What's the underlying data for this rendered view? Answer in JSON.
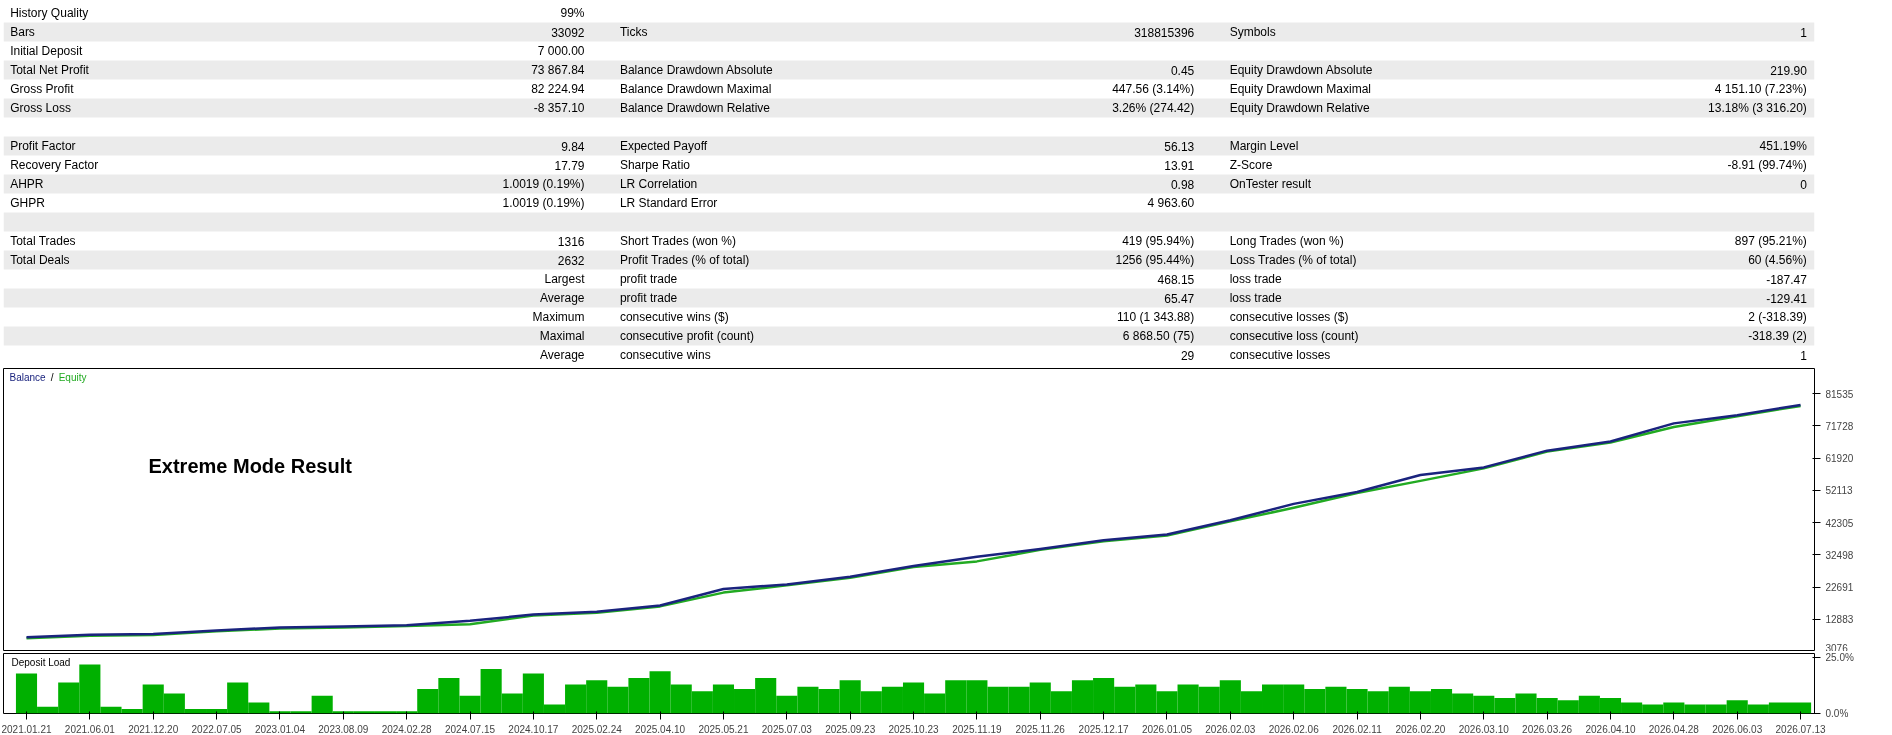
{
  "chart_data": [
    {
      "type": "other",
      "annotations": [
        "History Quality",
        "99%",
        "Bars",
        "33092",
        "Ticks",
        "318815396",
        "Symbols",
        "1",
        "Initial Deposit",
        "7 000.00",
        "Total Net Profit",
        "73 867.84",
        "Balance Drawdown Absolute",
        "0.45",
        "Equity Drawdown Absolute",
        "219.90",
        "Gross Profit",
        "82 224.94",
        "Balance Drawdown Maximal",
        "447.56 (3.14%)",
        "Equity Drawdown Maximal",
        "4 151.10 (7.23%)",
        "Gross Loss",
        "-8 357.10",
        "Balance Drawdown Relative",
        "3.26% (274.42)",
        "Equity Drawdown Relative",
        "13.18% (3 316.20)",
        "Profit Factor",
        "9.84",
        "Expected Payoff",
        "56.13",
        "Margin Level",
        "451.19%",
        "Recovery Factor",
        "17.79",
        "Sharpe Ratio",
        "13.91",
        "Z-Score",
        "-8.91 (99.74%)",
        "AHPR",
        "1.0019 (0.19%)",
        "LR Correlation",
        "0.98",
        "OnTester result",
        "0",
        "GHPR",
        "1.0019 (0.19%)",
        "LR Standard Error",
        "4 963.60",
        "Total Trades",
        "1316",
        "Short Trades (won %)",
        "419 (95.94%)",
        "Long Trades (won %)",
        "897 (95.21%)",
        "Total Deals",
        "2632",
        "Profit Trades (% of total)",
        "1256 (95.44%)",
        "Loss Trades (% of total)",
        "60 (4.56%)",
        "Largest",
        "profit trade",
        "468.15",
        "loss trade",
        "-187.47",
        "Average",
        "profit trade",
        "65.47",
        "loss trade",
        "-129.41",
        "Maximum",
        "consecutive wins ($)",
        "110 (1 343.88)",
        "consecutive losses ($)",
        "2 (-318.39)",
        "Maximal",
        "consecutive profit (count)",
        "6 868.50 (75)",
        "consecutive loss (count)",
        "-318.39 (2)",
        "Average",
        "consecutive wins",
        "29",
        "consecutive losses",
        "1"
      ]
    },
    {
      "type": "line",
      "categories": [
        "2021.01.21",
        "2021.06.01",
        "2021.12.20",
        "2022.07.05",
        "2023.01.04",
        "2023.08.09",
        "2024.02.28",
        "2024.07.15",
        "2024.10.17",
        "2025.02.24",
        "2025.04.10",
        "2025.05.21",
        "2025.07.03",
        "2025.09.23",
        "2025.10.23",
        "2025.11.19",
        "2025.11.26",
        "2025.12.17",
        "2026.01.05",
        "2026.02.03",
        "2026.02.06",
        "2026.02.11",
        "2026.02.20",
        "2026.03.10",
        "2026.03.26",
        "2026.04.10",
        "2026.04.28",
        "2026.06.03",
        "2026.07.13"
      ],
      "series": [
        {
          "name": "Balance",
          "color": "#1a237e",
          "values": [
            7400,
            8200,
            8400,
            9500,
            10400,
            10700,
            11100,
            12400,
            14300,
            15200,
            17100,
            22100,
            23500,
            25800,
            29100,
            31900,
            34300,
            36900,
            38700,
            43000,
            48000,
            51600,
            56800,
            59100,
            64200,
            67000,
            72500,
            75000,
            78100
          ]
        },
        {
          "name": "Equity",
          "color": "#22aa22",
          "values": [
            7100,
            7900,
            8100,
            9200,
            10100,
            10400,
            10800,
            11400,
            14000,
            14900,
            16800,
            21000,
            23200,
            25500,
            28800,
            30500,
            34000,
            36600,
            38400,
            42700,
            46800,
            51300,
            55000,
            58800,
            63900,
            66700,
            71400,
            74700,
            77800
          ]
        }
      ],
      "ylim": [
        3076,
        89200
      ],
      "yticks": [
        3076,
        12883,
        22691,
        32498,
        42305,
        52113,
        61920,
        71728,
        81535
      ],
      "tick_labels": "y",
      "legend": "top left",
      "annotations": [
        "Extreme Mode Result",
        "/"
      ]
    },
    {
      "type": "bar",
      "title": "Deposit Load",
      "color": "#00b000",
      "categories": [
        "2021.01.21",
        null,
        null,
        "2021.06.01",
        null,
        null,
        "2021.12.20",
        null,
        null,
        "2022.07.05",
        null,
        null,
        "2023.01.04",
        null,
        null,
        "2023.08.09",
        null,
        null,
        "2024.02.28",
        null,
        null,
        "2024.07.15",
        null,
        null,
        "2024.10.17",
        null,
        null,
        "2025.02.24",
        null,
        null,
        "2025.04.10",
        null,
        null,
        "2025.05.21",
        null,
        null,
        "2025.07.03",
        null,
        null,
        "2025.09.23",
        null,
        null,
        "2025.10.23",
        null,
        null,
        "2025.11.19",
        null,
        null,
        "2025.11.26",
        null,
        null,
        "2025.12.17",
        null,
        null,
        "2026.01.05",
        null,
        null,
        "2026.02.03",
        null,
        null,
        "2026.02.06",
        null,
        null,
        "2026.02.11",
        null,
        null,
        "2026.02.20",
        null,
        null,
        "2026.03.10",
        null,
        null,
        "2026.03.26",
        null,
        null,
        "2026.04.10",
        null,
        null,
        "2026.04.28",
        null,
        null,
        "2026.06.03",
        null,
        null,
        "2026.07.13"
      ],
      "values": [
        18,
        3,
        14,
        22,
        3,
        2,
        13,
        9,
        2,
        2,
        14,
        5,
        1,
        1,
        8,
        1,
        1,
        1,
        1,
        11,
        16,
        8,
        20,
        9,
        18,
        4,
        13,
        15,
        12,
        16,
        19,
        13,
        10,
        13,
        11,
        16,
        8,
        12,
        11,
        15,
        10,
        12,
        14,
        9,
        15,
        15,
        12,
        12,
        14,
        10,
        15,
        16,
        12,
        13,
        10,
        13,
        12,
        15,
        10,
        13,
        13,
        11,
        12,
        11,
        10,
        12,
        10,
        11,
        9,
        8,
        7,
        9,
        7,
        6,
        8,
        7,
        5,
        4,
        5,
        4,
        4,
        6,
        4,
        5,
        5
      ],
      "ylim": [
        0,
        27
      ],
      "yticks": [
        {
          "value": 0,
          "label": "0.0%"
        },
        {
          "value": 25,
          "label": "25.0%"
        }
      ]
    }
  ]
}
